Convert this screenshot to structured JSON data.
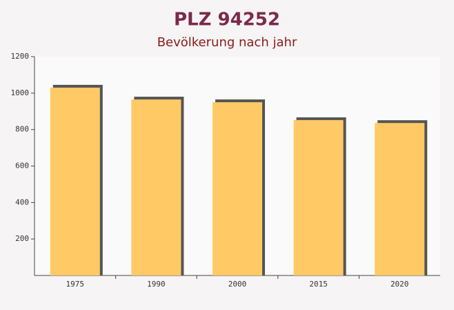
{
  "chart_data": {
    "type": "bar",
    "title": "PLZ 94252",
    "subtitle": "Bevölkerung nach jahr",
    "categories": [
      "1975",
      "1990",
      "2000",
      "2015",
      "2020"
    ],
    "values": [
      1030,
      965,
      950,
      852,
      836
    ],
    "color": "#ffc966",
    "ylim": [
      0,
      1200
    ],
    "yticks": [
      200,
      400,
      600,
      800,
      1000,
      1200
    ]
  }
}
